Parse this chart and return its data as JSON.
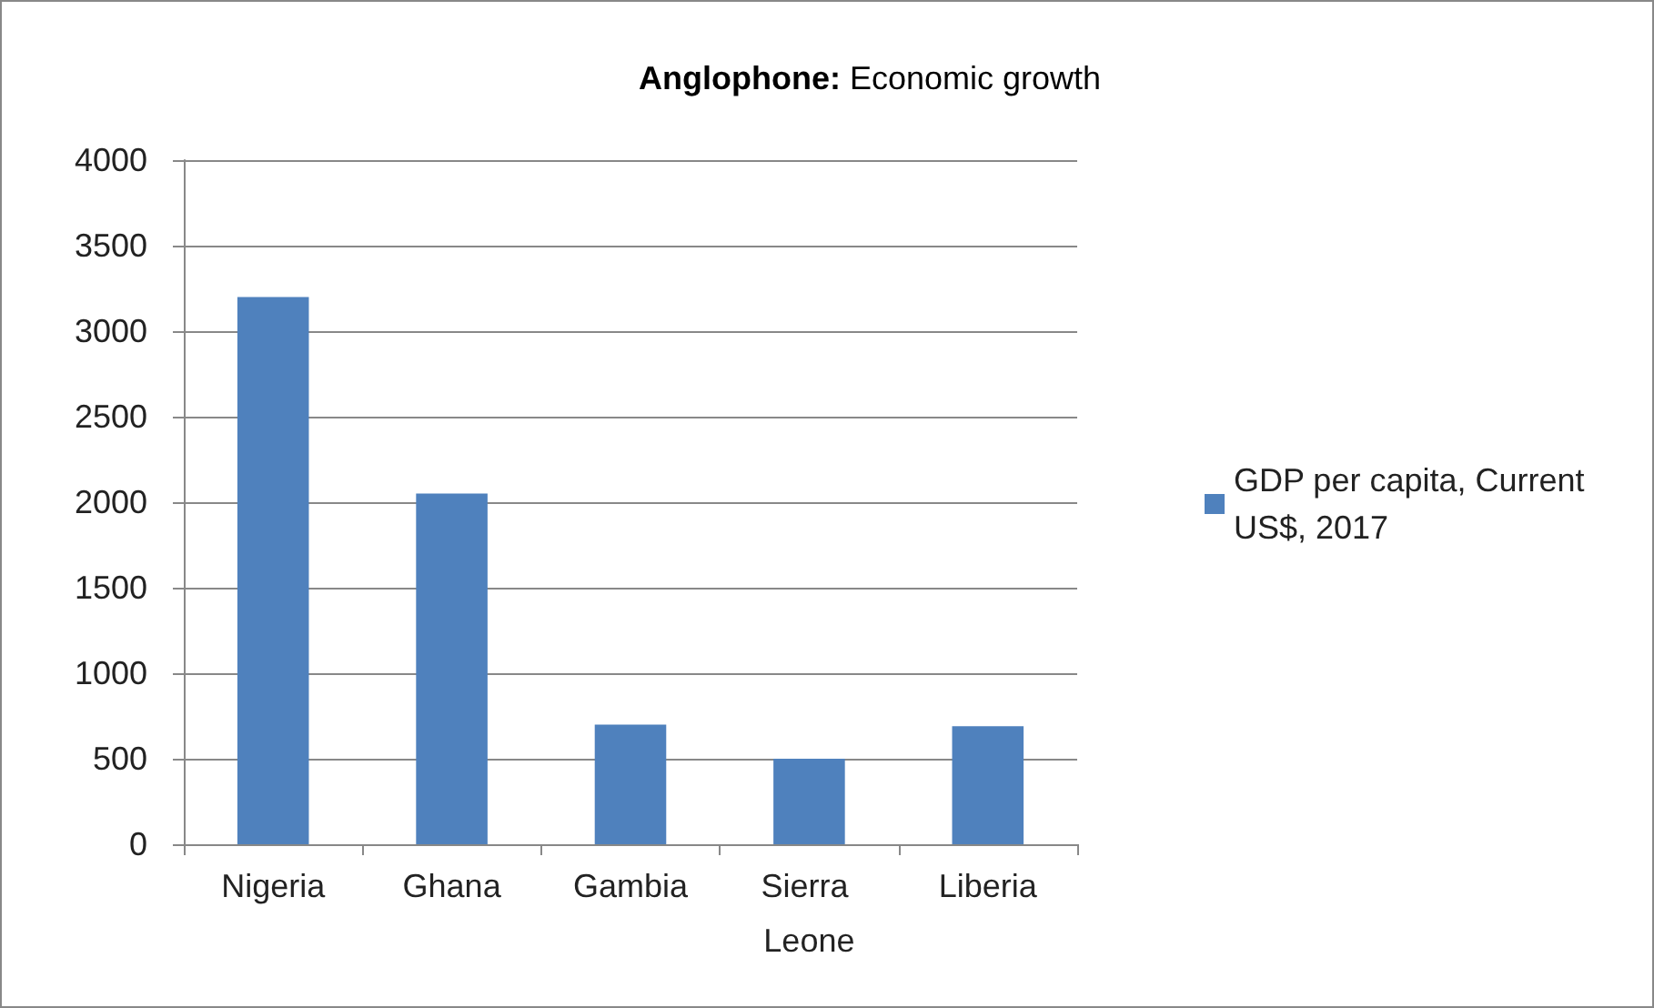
{
  "chart_data": {
    "type": "bar",
    "title": "Anglophone: Economic growth",
    "categories": [
      "Nigeria",
      "Ghana",
      "Gambia",
      "Sierra Leone",
      "Liberia"
    ],
    "series": [
      {
        "name": "GDP per capita, Current US$, 2017",
        "color": "#4f81bd",
        "values": [
          3200,
          2050,
          700,
          500,
          690
        ]
      }
    ],
    "ylim": [
      0,
      4000
    ],
    "yticks": [
      0,
      500,
      1000,
      1500,
      2000,
      2500,
      3000,
      3500,
      4000
    ],
    "grid": "y",
    "legend": "right"
  }
}
